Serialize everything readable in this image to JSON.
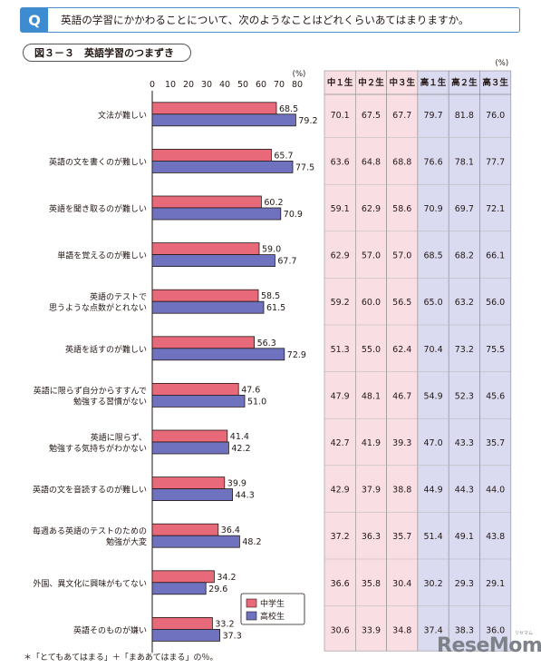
{
  "question": {
    "badge": "Q",
    "text": "英語の学習にかかわることについて、次のようなことはどれくらいあてはまりますか。"
  },
  "figure_title": "図３－３　英語学習のつまずき",
  "footnote": "＊「とてもあてはまる」＋「まああてはまる」の％。",
  "logo": {
    "main": "ReseMom",
    "sub": "リセマム"
  },
  "colors": {
    "junior": "#e8697a",
    "senior": "#6f72bf",
    "junior_table_bg": "#f9dfe3",
    "senior_table_bg": "#dadaf0"
  },
  "table": {
    "unit": "(%)",
    "headers": [
      "中１生",
      "中２生",
      "中３生",
      "高１生",
      "高２生",
      "高３生"
    ],
    "rows": [
      [
        "70.1",
        "67.5",
        "67.7",
        "79.7",
        "81.8",
        "76.0"
      ],
      [
        "63.6",
        "64.8",
        "68.8",
        "76.6",
        "78.1",
        "77.7"
      ],
      [
        "59.1",
        "62.9",
        "58.6",
        "70.9",
        "69.7",
        "72.1"
      ],
      [
        "62.9",
        "57.0",
        "57.0",
        "68.5",
        "68.2",
        "66.1"
      ],
      [
        "59.2",
        "60.0",
        "56.5",
        "65.0",
        "63.2",
        "56.0"
      ],
      [
        "51.3",
        "55.0",
        "62.4",
        "70.4",
        "73.2",
        "75.5"
      ],
      [
        "47.9",
        "48.1",
        "46.7",
        "54.9",
        "52.3",
        "45.6"
      ],
      [
        "42.7",
        "41.9",
        "39.3",
        "47.0",
        "43.3",
        "35.7"
      ],
      [
        "42.9",
        "37.9",
        "38.8",
        "44.9",
        "44.3",
        "44.0"
      ],
      [
        "37.2",
        "36.3",
        "35.7",
        "51.4",
        "49.1",
        "43.8"
      ],
      [
        "36.6",
        "35.8",
        "30.4",
        "30.2",
        "29.3",
        "29.1"
      ],
      [
        "30.6",
        "33.9",
        "34.8",
        "37.4",
        "38.3",
        "36.0"
      ]
    ]
  },
  "chart_data": {
    "type": "bar",
    "orientation": "horizontal",
    "unit": "(%)",
    "xlim": [
      0,
      80
    ],
    "ticks": [
      "0",
      "10",
      "20",
      "30",
      "40",
      "50",
      "60",
      "70",
      "80"
    ],
    "legend_position": "bottom-right",
    "categories": [
      [
        "文法が難しい"
      ],
      [
        "英語の文を書くのが難しい"
      ],
      [
        "英語を聞き取るのが難しい"
      ],
      [
        "単語を覚えるのが難しい"
      ],
      [
        "英語のテストで",
        "思うような点数がとれない"
      ],
      [
        "英語を話すのが難しい"
      ],
      [
        "英語に限らず自分からすすんで",
        "勉強する習慣がない"
      ],
      [
        "英語に限らず、",
        "勉強する気持ちがわかない"
      ],
      [
        "英語の文を音読するのが難しい"
      ],
      [
        "毎週ある英語のテストのための",
        "勉強が大変"
      ],
      [
        "外国、異文化に興味がもてない"
      ],
      [
        "英語そのものが嫌い"
      ]
    ],
    "series": [
      {
        "name": "中学生",
        "values": [
          68.5,
          65.7,
          60.2,
          59.0,
          58.5,
          56.3,
          47.6,
          41.4,
          39.9,
          36.4,
          34.2,
          33.2
        ]
      },
      {
        "name": "高校生",
        "values": [
          79.2,
          77.5,
          70.9,
          67.7,
          61.5,
          72.9,
          51.0,
          42.2,
          44.3,
          48.2,
          29.6,
          37.3
        ]
      }
    ]
  }
}
